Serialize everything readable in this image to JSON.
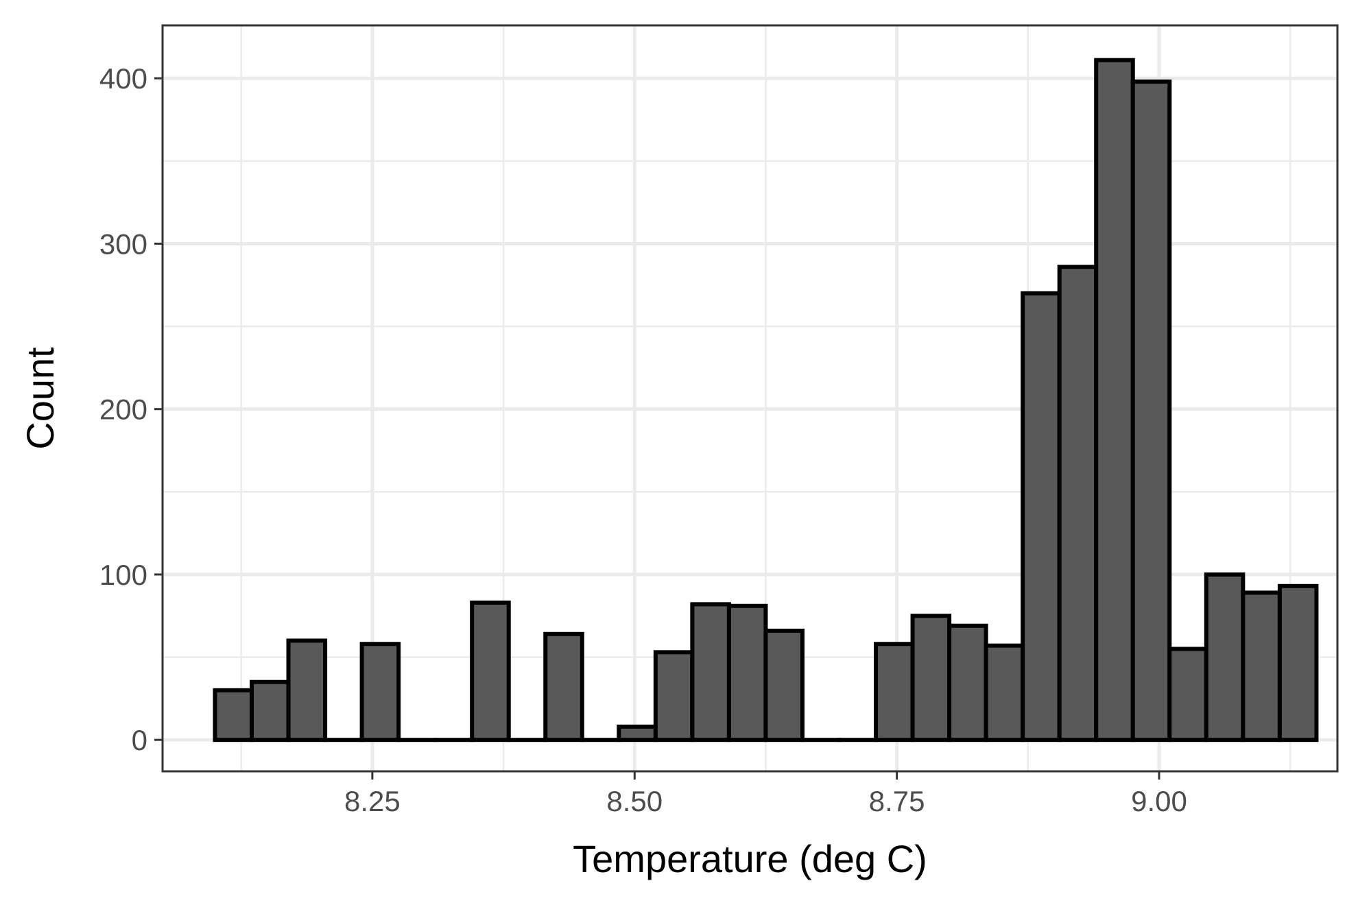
{
  "chart_data": {
    "type": "bar",
    "subtype": "histogram",
    "title": "",
    "xlabel": "Temperature (deg C)",
    "ylabel": "Count",
    "xlim": [
      8.05,
      9.17
    ],
    "ylim": [
      -19,
      432
    ],
    "x_ticks": [
      8.25,
      8.5,
      8.75,
      9.0
    ],
    "x_tick_labels": [
      "8.25",
      "8.50",
      "8.75",
      "9.00"
    ],
    "y_ticks": [
      0,
      100,
      200,
      300,
      400
    ],
    "y_tick_labels": [
      "0",
      "100",
      "200",
      "300",
      "400"
    ],
    "grid": true,
    "legend": "none",
    "bin_width": 0.035,
    "bin_start": 8.1,
    "values": [
      30,
      35,
      60,
      0,
      58,
      0,
      0,
      83,
      0,
      64,
      0,
      8,
      53,
      82,
      81,
      66,
      0,
      0,
      58,
      75,
      69,
      57,
      270,
      286,
      411,
      398,
      55,
      100,
      89,
      93
    ],
    "colors": {
      "bar_fill": "#595959",
      "bar_stroke": "#000000",
      "grid": "#ebebeb",
      "panel_border": "#333333"
    }
  }
}
